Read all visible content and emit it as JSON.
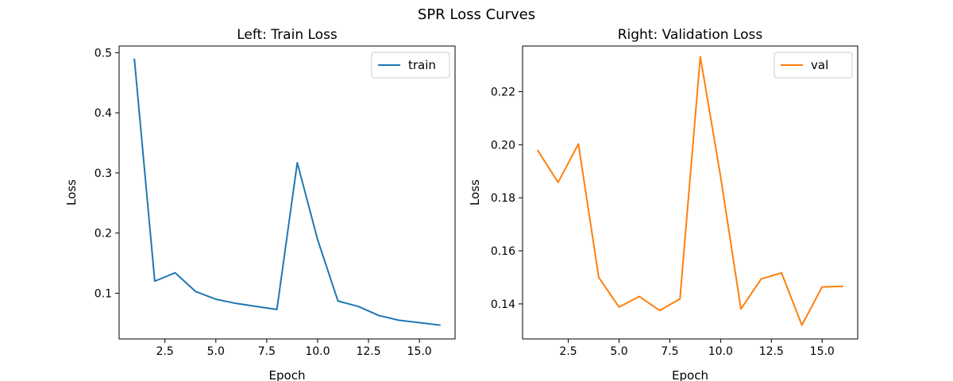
{
  "figure": {
    "title": "SPR Loss Curves"
  },
  "chart_data": [
    {
      "type": "line",
      "title": "Left: Train Loss",
      "xlabel": "Epoch",
      "ylabel": "Loss",
      "xlim": [
        0.25,
        16.75
      ],
      "ylim": [
        0.024,
        0.511
      ],
      "xticks": [
        2.5,
        5.0,
        7.5,
        10.0,
        12.5,
        15.0
      ],
      "xtick_labels": [
        "2.5",
        "5.0",
        "7.5",
        "10.0",
        "12.5",
        "15.0"
      ],
      "yticks": [
        0.1,
        0.2,
        0.3,
        0.4,
        0.5
      ],
      "ytick_labels": [
        "0.1",
        "0.2",
        "0.3",
        "0.4",
        "0.5"
      ],
      "grid": false,
      "legend": "top-right",
      "series": [
        {
          "name": "train",
          "color": "#1f77b4",
          "x": [
            1,
            2,
            3,
            4,
            5,
            6,
            7,
            8,
            9,
            10,
            11,
            12,
            13,
            14,
            15,
            16
          ],
          "y": [
            0.489,
            0.12,
            0.134,
            0.103,
            0.09,
            0.083,
            0.078,
            0.073,
            0.317,
            0.189,
            0.087,
            0.078,
            0.063,
            0.055,
            0.051,
            0.047
          ]
        }
      ]
    },
    {
      "type": "line",
      "title": "Right: Validation Loss",
      "xlabel": "Epoch",
      "ylabel": "Loss",
      "xlim": [
        0.25,
        16.75
      ],
      "ylim": [
        0.1268,
        0.2372
      ],
      "xticks": [
        2.5,
        5.0,
        7.5,
        10.0,
        12.5,
        15.0
      ],
      "xtick_labels": [
        "2.5",
        "5.0",
        "7.5",
        "10.0",
        "12.5",
        "15.0"
      ],
      "yticks": [
        0.14,
        0.16,
        0.18,
        0.2,
        0.22
      ],
      "ytick_labels": [
        "0.14",
        "0.16",
        "0.18",
        "0.20",
        "0.22"
      ],
      "grid": false,
      "legend": "top-right",
      "series": [
        {
          "name": "val",
          "color": "#ff7f0e",
          "x": [
            1,
            2,
            3,
            4,
            5,
            6,
            7,
            8,
            9,
            10,
            11,
            12,
            13,
            14,
            15,
            16
          ],
          "y": [
            0.1978,
            0.1858,
            0.2003,
            0.15,
            0.1388,
            0.1428,
            0.1375,
            0.1419,
            0.2332,
            0.188,
            0.1381,
            0.1494,
            0.1517,
            0.132,
            0.1464,
            0.1466
          ]
        }
      ]
    }
  ]
}
